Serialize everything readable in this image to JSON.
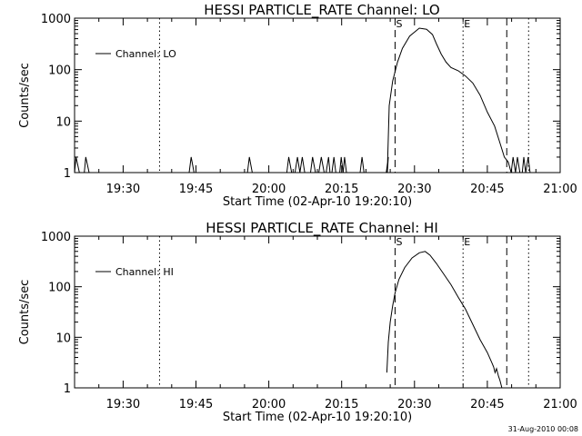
{
  "chart_data": [
    {
      "type": "line",
      "title": "HESSI PARTICLE_RATE Channel: LO",
      "xlabel": "Start Time (02-Apr-10 19:20:10)",
      "ylabel": "Counts/sec",
      "xlim": [
        "19:20",
        "21:00"
      ],
      "ylim": [
        1,
        1000
      ],
      "yscale": "log",
      "x_ticks": [
        "19:30",
        "19:45",
        "20:00",
        "20:15",
        "20:30",
        "20:45",
        "21:00"
      ],
      "y_ticks": [
        "1",
        "10",
        "100",
        "1000"
      ],
      "legend": {
        "position": "top-left",
        "entries": [
          "Channel: LO"
        ]
      },
      "series": [
        {
          "name": "Channel: LO",
          "x_minutes": [
            0,
            0.3,
            1,
            1.7,
            2,
            2.3,
            3,
            23.2,
            23.6,
            24,
            24.6,
            35.2,
            35.6,
            36,
            36.6,
            43.3,
            43.7,
            44.1,
            44.7,
            45.4,
            45.9,
            46.4,
            46.9,
            47.4,
            48.2,
            48.6,
            49,
            49.6,
            49.9,
            50.3,
            50.8,
            51.4,
            51.8,
            52.3,
            52.6,
            53,
            53.4,
            53.8,
            54.6,
            54.9,
            55.3,
            55.6,
            56,
            56.5,
            58.5,
            58.8,
            59.2,
            59.6,
            63.5,
            63.8,
            64.2,
            64.6,
            64.4,
            64.8,
            65.5,
            66.5,
            67.5,
            69,
            71,
            72.5,
            73.7,
            74.5,
            75.5,
            76.5,
            77.5,
            79,
            80.5,
            82,
            83.5,
            85,
            86.5,
            87.5,
            88.5,
            89.3,
            89.9,
            90.3,
            90.8,
            91.2,
            91.7,
            92.2,
            92.5,
            92.9,
            93.4,
            93.8
          ],
          "y": [
            1,
            2,
            1,
            1,
            1,
            2,
            1,
            1,
            1,
            2,
            1,
            1,
            1,
            2,
            1,
            1,
            1,
            2,
            1,
            1,
            2,
            1,
            2,
            1,
            1,
            1,
            2,
            1,
            1,
            1,
            2,
            1,
            1,
            2,
            1,
            1,
            2,
            1,
            1,
            2,
            1,
            2,
            1,
            1,
            1,
            1,
            2,
            1,
            1,
            1,
            1,
            2,
            1,
            20,
            60,
            140,
            260,
            450,
            640,
            610,
            480,
            320,
            200,
            140,
            110,
            95,
            75,
            55,
            32,
            15,
            8,
            4,
            2,
            1.6,
            1,
            2,
            1,
            2,
            1,
            1,
            2,
            1,
            2,
            1
          ]
        }
      ],
      "markers": [
        {
          "label": "S",
          "x_minutes": 66.0,
          "style": "dashed"
        },
        {
          "label": "E",
          "x_minutes": 80.0,
          "style": "dotted"
        },
        {
          "label": "",
          "x_minutes": 17.5,
          "style": "dotted"
        },
        {
          "label": "",
          "x_minutes": 89.0,
          "style": "dashed"
        },
        {
          "label": "",
          "x_minutes": 93.5,
          "style": "dotted"
        }
      ]
    },
    {
      "type": "line",
      "title": "HESSI PARTICLE_RATE Channel: HI",
      "xlabel": "Start Time (02-Apr-10 19:20:10)",
      "ylabel": "Counts/sec",
      "xlim": [
        "19:20",
        "21:00"
      ],
      "ylim": [
        1,
        1000
      ],
      "yscale": "log",
      "x_ticks": [
        "19:30",
        "19:45",
        "20:00",
        "20:15",
        "20:30",
        "20:45",
        "21:00"
      ],
      "y_ticks": [
        "1",
        "10",
        "100",
        "1000"
      ],
      "legend": {
        "position": "top-left",
        "entries": [
          "Channel: HI"
        ]
      },
      "series": [
        {
          "name": "Channel: HI",
          "x_minutes": [
            64.3,
            64.6,
            65,
            65.5,
            66,
            66.8,
            68,
            69.5,
            71,
            72.2,
            73.2,
            74.5,
            76,
            77.5,
            79,
            80.5,
            82,
            83.5,
            85,
            85.9,
            86.3,
            86.6,
            86.9,
            87.3,
            87.6,
            88
          ],
          "y": [
            2,
            8,
            20,
            42,
            75,
            140,
            240,
            370,
            470,
            500,
            420,
            290,
            180,
            110,
            62,
            36,
            18,
            9,
            5,
            3.2,
            2.6,
            2,
            2.4,
            1.7,
            1.4,
            1
          ]
        }
      ],
      "markers": [
        {
          "label": "S",
          "x_minutes": 66.0,
          "style": "dashed"
        },
        {
          "label": "E",
          "x_minutes": 80.0,
          "style": "dotted"
        },
        {
          "label": "",
          "x_minutes": 17.5,
          "style": "dotted"
        },
        {
          "label": "",
          "x_minutes": 89.0,
          "style": "dashed"
        },
        {
          "label": "",
          "x_minutes": 93.5,
          "style": "dotted"
        }
      ]
    }
  ],
  "footer": {
    "timestamp": "31-Aug-2010 00:08"
  }
}
